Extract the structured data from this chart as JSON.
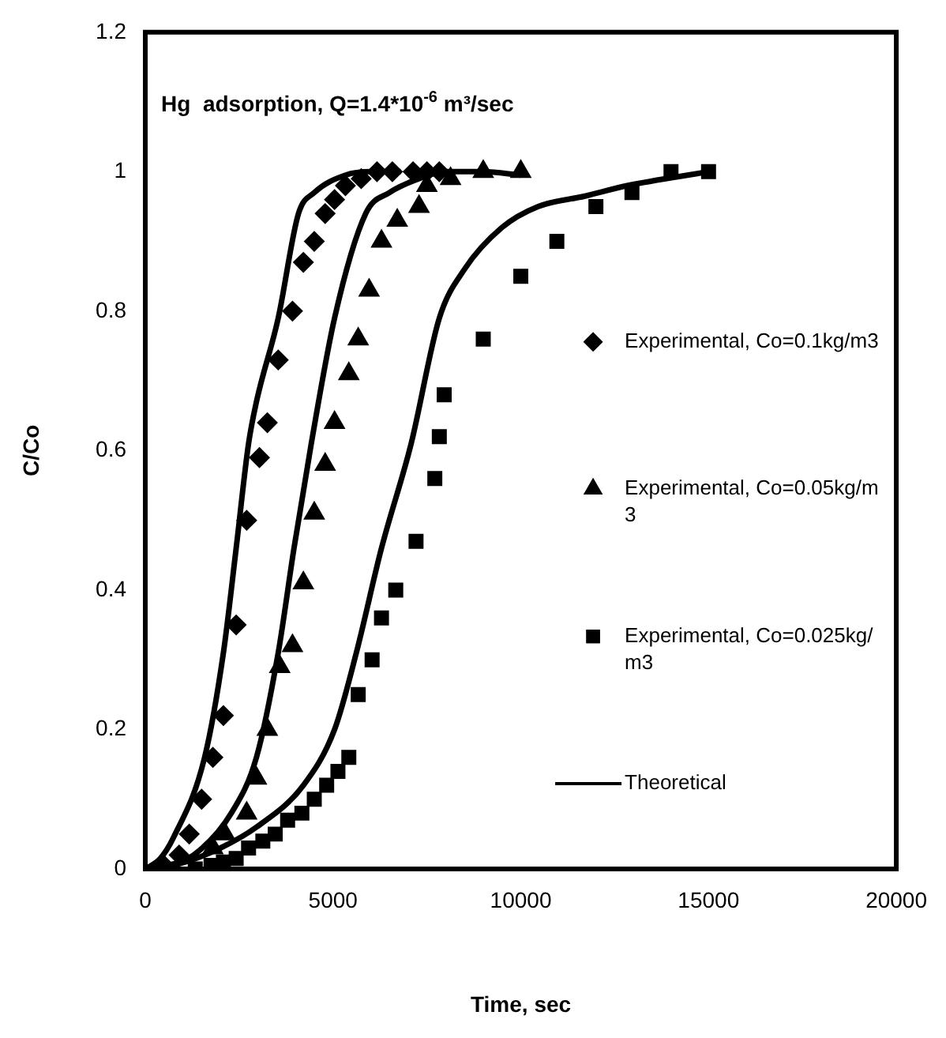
{
  "chart_data": {
    "type": "scatter",
    "title": "Hg  adsorption, Q=1.4*10$^{-6}$ m³/sec",
    "xlabel": "Time, sec",
    "ylabel": "C/Co",
    "xlim": [
      0,
      20000
    ],
    "xticks": [
      0,
      5000,
      10000,
      15000,
      20000
    ],
    "ylim": [
      0,
      1.2
    ],
    "yticks": [
      0,
      0.2,
      0.4,
      0.6,
      0.8,
      1,
      1.2
    ],
    "grid": false,
    "legend": "right",
    "series": [
      {
        "name": "Experimental, Co=0.1kg/m3",
        "type": "scatter",
        "marker": "diamond",
        "color": "#000000",
        "x": [
          500,
          900,
          1170,
          1500,
          1800,
          2080,
          2420,
          2700,
          3040,
          3250,
          3540,
          3920,
          4210,
          4500,
          4790,
          5040,
          5330,
          5750,
          6170,
          6580,
          7130,
          7500,
          7830
        ],
        "values": [
          0.005,
          0.02,
          0.05,
          0.1,
          0.16,
          0.22,
          0.35,
          0.5,
          0.59,
          0.64,
          0.73,
          0.8,
          0.87,
          0.9,
          0.94,
          0.96,
          0.98,
          0.99,
          1,
          1,
          1,
          1,
          1
        ]
      },
      {
        "name": "Experimental, Co=0.05kg/m3",
        "type": "scatter",
        "marker": "triangle",
        "color": "#000000",
        "x": [
          1800,
          2120,
          2700,
          2960,
          3250,
          3580,
          3920,
          4210,
          4500,
          4790,
          5040,
          5420,
          5670,
          5960,
          6290,
          6710,
          7290,
          7500,
          7830,
          8130,
          9000,
          10000
        ],
        "values": [
          0.03,
          0.05,
          0.08,
          0.13,
          0.2,
          0.29,
          0.32,
          0.41,
          0.51,
          0.58,
          0.64,
          0.71,
          0.76,
          0.83,
          0.9,
          0.93,
          0.95,
          0.98,
          null,
          0.99,
          1,
          1
        ]
      },
      {
        "name": "Experimental, Co=0.025kg/m3",
        "type": "scatter",
        "marker": "square",
        "color": "#000000",
        "x": [
          1330,
          1750,
          2080,
          2420,
          2750,
          3130,
          3460,
          3790,
          4170,
          4500,
          4830,
          5130,
          5420,
          5670,
          6040,
          6290,
          6670,
          7210,
          7710,
          7830,
          7960,
          9000,
          10000,
          10960,
          12000,
          12960,
          14000,
          15000
        ],
        "values": [
          0,
          0.005,
          0.01,
          0.015,
          0.03,
          0.04,
          0.05,
          0.07,
          0.08,
          0.1,
          0.12,
          0.14,
          0.16,
          0.25,
          0.3,
          0.36,
          0.4,
          0.47,
          0.56,
          0.62,
          0.68,
          0.76,
          0.85,
          0.9,
          0.95,
          0.97,
          1,
          1
        ]
      },
      {
        "name": "Theoretical",
        "type": "line",
        "marker": "none",
        "color": "#000000",
        "x": [
          0,
          400,
          750,
          1580,
          2080,
          2420,
          2750,
          2960,
          3540,
          4080,
          4500,
          5330,
          6000,
          6800
        ],
        "values": [
          0,
          0.015,
          0.045,
          0.16,
          0.31,
          0.46,
          0.61,
          0.67,
          0.79,
          0.94,
          0.97,
          0.995,
          1,
          1
        ]
      },
      {
        "type": "line",
        "marker": "none",
        "color": "#000000",
        "x": [
          0,
          600,
          1290,
          2290,
          2960,
          3540,
          3960,
          4420,
          5040,
          5870,
          6500,
          7290,
          8000,
          9000,
          10000
        ],
        "values": [
          0,
          0.005,
          0.02,
          0.08,
          0.16,
          0.31,
          0.46,
          0.61,
          0.79,
          0.94,
          0.97,
          0.99,
          1,
          1,
          0.995
        ]
      },
      {
        "type": "line",
        "marker": "none",
        "color": "#000000",
        "x": [
          0,
          875,
          2000,
          2960,
          4210,
          5040,
          5620,
          6290,
          7080,
          7830,
          8500,
          9500,
          10460,
          11710,
          12830,
          15000
        ],
        "values": [
          0,
          0.007,
          0.03,
          0.06,
          0.12,
          0.2,
          0.31,
          0.46,
          0.61,
          0.79,
          0.86,
          0.92,
          0.95,
          0.965,
          0.98,
          1
        ]
      }
    ]
  }
}
